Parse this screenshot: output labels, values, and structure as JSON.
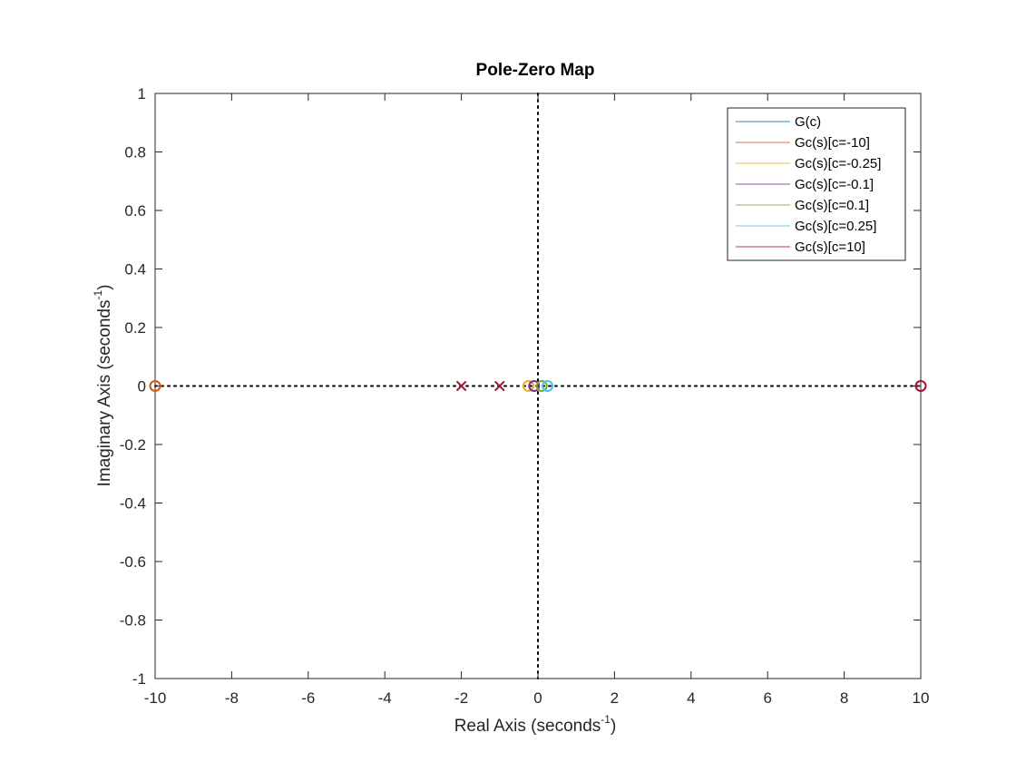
{
  "chart_data": {
    "type": "scatter",
    "title": "Pole-Zero Map",
    "xlabel": {
      "main": "Real Axis (seconds",
      "sup": "-1",
      "close": ")"
    },
    "ylabel": {
      "main": "Imaginary Axis (seconds",
      "sup": "-1",
      "close": ")"
    },
    "xlim": [
      -10,
      10
    ],
    "ylim": [
      -1,
      1
    ],
    "x_ticks": [
      -10,
      -8,
      -6,
      -4,
      -2,
      0,
      2,
      4,
      6,
      8,
      10
    ],
    "x_tick_labels": [
      "-10",
      "-8",
      "-6",
      "-4",
      "-2",
      "0",
      "2",
      "4",
      "6",
      "8",
      "10"
    ],
    "y_ticks": [
      -1,
      -0.8,
      -0.6,
      -0.4,
      -0.2,
      0,
      0.2,
      0.4,
      0.6,
      0.8,
      1
    ],
    "y_tick_labels": [
      "-1",
      "-0.8",
      "-0.6",
      "-0.4",
      "-0.2",
      "0",
      "0.2",
      "0.4",
      "0.6",
      "0.8",
      "1"
    ],
    "grid": false,
    "legend_position": "top-right",
    "series": [
      {
        "name": "G(c)",
        "color": "#0072BD",
        "poles": [
          [
            -2,
            0
          ],
          [
            -1,
            0
          ]
        ],
        "zeros": []
      },
      {
        "name": "Gc(s)[c=-10]",
        "color": "#D95319",
        "poles": [
          [
            -2,
            0
          ],
          [
            -1,
            0
          ]
        ],
        "zeros": [
          [
            -10,
            0
          ]
        ]
      },
      {
        "name": "Gc(s)[c=-0.25]",
        "color": "#EDB120",
        "poles": [
          [
            -2,
            0
          ],
          [
            -1,
            0
          ]
        ],
        "zeros": [
          [
            -0.25,
            0
          ]
        ]
      },
      {
        "name": "Gc(s)[c=-0.1]",
        "color": "#7E2F8E",
        "poles": [
          [
            -2,
            0
          ],
          [
            -1,
            0
          ]
        ],
        "zeros": [
          [
            -0.1,
            0
          ]
        ]
      },
      {
        "name": "Gc(s)[c=0.1]",
        "color": "#77AC30",
        "poles": [
          [
            -2,
            0
          ],
          [
            -1,
            0
          ]
        ],
        "zeros": [
          [
            0.1,
            0
          ]
        ]
      },
      {
        "name": "Gc(s)[c=0.25]",
        "color": "#4DBEEE",
        "poles": [
          [
            -2,
            0
          ],
          [
            -1,
            0
          ]
        ],
        "zeros": [
          [
            0.25,
            0
          ]
        ]
      },
      {
        "name": "Gc(s)[c=10]",
        "color": "#A2142F",
        "poles": [
          [
            -2,
            0
          ],
          [
            -1,
            0
          ]
        ],
        "zeros": [
          [
            10,
            0
          ]
        ]
      }
    ]
  }
}
